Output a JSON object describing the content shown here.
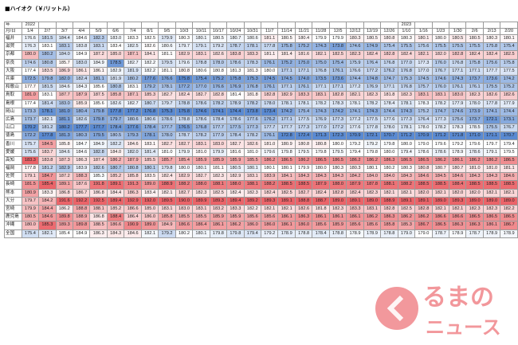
{
  "title": "■ハイオク（￥/リットル）",
  "table": {
    "corner_top": "年",
    "corner_bottom": "月/日",
    "years": [
      "2022",
      null,
      null,
      null,
      null,
      null,
      null,
      null,
      null,
      null,
      null,
      null,
      null,
      null,
      null,
      null,
      null,
      null,
      null,
      null,
      null,
      null,
      "2023",
      null,
      null,
      null,
      null,
      null,
      null
    ],
    "dates": [
      "1/4",
      "2/7",
      "3/7",
      "4/4",
      "5/9",
      "6/6",
      "7/4",
      "8/1",
      "9/5",
      "10/3",
      "10/11",
      "10/17",
      "10/24",
      "10/31",
      "11/7",
      "11/14",
      "11/21",
      "11/28",
      "12/5",
      "12/12",
      "12/19",
      "12/26",
      "1/10",
      "1/16",
      "1/23",
      "1/30",
      "2/6",
      "2/13",
      "2/20"
    ],
    "rows": [
      {
        "label": "福井",
        "values": [
          "176.6",
          "181.5",
          "184.4",
          "184.6",
          "182.3",
          "183.0",
          "183.3",
          "182.5",
          "179.9",
          "180.3",
          "180.1",
          "180.5",
          "180.7",
          "180.6",
          "181.1",
          "180.5",
          "180.4",
          "179.9",
          "179.9",
          "180.3",
          "180.5",
          "180.8",
          "180.3",
          "180.1",
          "180.0",
          "180.5",
          "180.5",
          "180.3",
          "180.1"
        ]
      },
      {
        "label": "滋賀",
        "values": [
          "176.3",
          "183.1",
          "183.1",
          "183.8",
          "183.1",
          "183.4",
          "182.5",
          "182.6",
          "180.6",
          "179.7",
          "179.1",
          "179.2",
          "178.7",
          "178.1",
          "177.8",
          "175.8",
          "175.2",
          "174.3",
          "173.8",
          "174.6",
          "174.9",
          "175.4",
          "175.5",
          "175.6",
          "175.5",
          "175.5",
          "175.5",
          "175.8",
          "175.4"
        ]
      },
      {
        "label": "京都",
        "values": [
          "180.0",
          "180.2",
          "184.0",
          "184.9",
          "187.2",
          "185.0",
          "187.1",
          "184.1",
          "181.1",
          "182.9",
          "183.1",
          "182.6",
          "183.8",
          "183.3",
          "181.1",
          "181.4",
          "181.6",
          "182.1",
          "182.5",
          "182.3",
          "182.4",
          "182.8",
          "182.4",
          "182.1",
          "182.0",
          "182.8",
          "182.4",
          "182.4",
          "182.5"
        ]
      },
      {
        "label": "奈良",
        "values": [
          "174.6",
          "180.8",
          "185.7",
          "183.0",
          "184.9",
          "178.5",
          "182.7",
          "182.2",
          "179.5",
          "179.6",
          "178.8",
          "178.0",
          "178.6",
          "178.3",
          "176.1",
          "175.2",
          "175.0",
          "175.0",
          "175.4",
          "175.9",
          "176.4",
          "176.8",
          "177.0",
          "177.3",
          "176.0",
          "176.8",
          "175.8",
          "175.6",
          "175.8"
        ]
      },
      {
        "label": "大阪",
        "values": [
          "177.4",
          "183.5",
          "186.9",
          "186.1",
          "186.1",
          "182.9",
          "181.9",
          "182.2",
          "181.1",
          "180.8",
          "180.6",
          "180.8",
          "181.3",
          "181.3",
          "180.0",
          "177.1",
          "177.1",
          "176.8",
          "176.1",
          "176.6",
          "177.2",
          "176.2",
          "176.8",
          "177.0",
          "176.7",
          "177.1",
          "177.1",
          "177.7",
          "177.5"
        ]
      },
      {
        "label": "兵庫",
        "values": [
          "172.5",
          "179.8",
          "182.0",
          "182.4",
          "181.1",
          "181.9",
          "180.2",
          "177.6",
          "176.6",
          "175.8",
          "175.4",
          "175.2",
          "175.8",
          "175.3",
          "174.5",
          "174.5",
          "174.0",
          "173.5",
          "173.6",
          "174.4",
          "174.8",
          "174.7",
          "175.3",
          "174.5",
          "174.6",
          "174.3",
          "173.7",
          "173.6",
          "174.2"
        ]
      },
      {
        "label": "和歌山",
        "values": [
          "177.7",
          "181.5",
          "184.6",
          "184.3",
          "185.6",
          "180.8",
          "183.1",
          "179.2",
          "178.1",
          "177.2",
          "177.0",
          "176.6",
          "176.9",
          "176.8",
          "176.1",
          "177.1",
          "176.1",
          "177.1",
          "177.1",
          "177.2",
          "176.9",
          "177.1",
          "176.8",
          "175.7",
          "176.0",
          "176.1",
          "176.1",
          "175.5",
          "175.2"
        ]
      },
      {
        "label": "鳥取",
        "values": [
          "181.0",
          "183.1",
          "187.7",
          "187.9",
          "187.5",
          "185.8",
          "187.1",
          "185.3",
          "182.7",
          "182.4",
          "182.7",
          "182.8",
          "181.4",
          "181.8",
          "182.8",
          "182.9",
          "183.3",
          "183.1",
          "182.8",
          "182.1",
          "182.3",
          "181.8",
          "182.3",
          "183.1",
          "183.1",
          "183.0",
          "182.3",
          "182.6",
          "182.6"
        ]
      },
      {
        "label": "島根",
        "values": [
          "177.4",
          "181.4",
          "183.0",
          "185.9",
          "185.6",
          "182.6",
          "182.7",
          "180.7",
          "179.7",
          "178.8",
          "178.6",
          "178.2",
          "178.9",
          "178.2",
          "178.0",
          "178.1",
          "178.1",
          "178.2",
          "178.3",
          "178.1",
          "178.2",
          "178.4",
          "178.1",
          "178.3",
          "178.2",
          "177.9",
          "178.0",
          "177.8",
          "177.9"
        ]
      },
      {
        "label": "岡山",
        "values": [
          "173.3",
          "178.1",
          "181.0",
          "180.4",
          "179.8",
          "177.8",
          "177.2",
          "176.8",
          "175.3",
          "175.8",
          "174.6",
          "174.1",
          "174.4",
          "173.8",
          "173.4",
          "174.2",
          "175.4",
          "174.3",
          "174.2",
          "174.1",
          "174.3",
          "174.4",
          "174.3",
          "175.2",
          "174.7",
          "174.6",
          "173.9",
          "174.1",
          "174.4"
        ]
      },
      {
        "label": "広島",
        "values": [
          "173.7",
          "182.1",
          "181.1",
          "182.6",
          "179.8",
          "179.7",
          "180.6",
          "180.6",
          "178.6",
          "178.8",
          "178.6",
          "178.4",
          "178.6",
          "177.6",
          "176.2",
          "177.1",
          "177.5",
          "176.9",
          "177.3",
          "177.2",
          "177.5",
          "177.6",
          "177.3",
          "176.4",
          "177.3",
          "175.6",
          "173.7",
          "172.1",
          "173.1"
        ]
      },
      {
        "label": "山口",
        "values": [
          "170.2",
          "181.2",
          "180.2",
          "177.7",
          "177.7",
          "178.4",
          "177.6",
          "178.4",
          "177.7",
          "176.5",
          "176.8",
          "177.7",
          "177.5",
          "177.3",
          "177.7",
          "177.7",
          "177.3",
          "177.0",
          "177.2",
          "177.6",
          "177.8",
          "178.0",
          "178.1",
          "178.0",
          "178.2",
          "178.3",
          "178.5",
          "175.5",
          "176.7"
        ]
      },
      {
        "label": "徳島",
        "values": [
          "172.2",
          "177.8",
          "181.3",
          "180.3",
          "179.5",
          "180.5",
          "179.3",
          "178.1",
          "178.0",
          "178.7",
          "178.2",
          "177.9",
          "178.4",
          "178.2",
          "176.1",
          "172.8",
          "172.4",
          "171.3",
          "172.3",
          "170.9",
          "172.1",
          "170.7",
          "171.2",
          "170.9",
          "171.2",
          "171.8",
          "171.0",
          "171.1",
          "170.7"
        ]
      },
      {
        "label": "香川",
        "values": [
          "175.7",
          "184.5",
          "185.8",
          "184.7",
          "184.9",
          "182.2",
          "184.6",
          "183.1",
          "182.7",
          "182.7",
          "183.1",
          "183.0",
          "182.7",
          "182.6",
          "181.0",
          "180.9",
          "180.8",
          "180.8",
          "180.0",
          "179.2",
          "179.2",
          "179.8",
          "180.0",
          "179.0",
          "179.6",
          "179.2",
          "179.6",
          "179.7",
          "179.4"
        ]
      },
      {
        "label": "愛媛",
        "values": [
          "175.6",
          "183.7",
          "184.6",
          "184.6",
          "182.8",
          "184.0",
          "182.0",
          "181.4",
          "181.0",
          "179.9",
          "181.0",
          "179.9",
          "181.6",
          "181.0",
          "179.6",
          "179.8",
          "179.5",
          "179.8",
          "179.5",
          "179.4",
          "179.8",
          "180.0",
          "179.4",
          "178.6",
          "178.6",
          "178.9",
          "178.6",
          "179.1",
          "179.5"
        ]
      },
      {
        "label": "高知",
        "values": [
          "183.3",
          "183.8",
          "187.3",
          "186.3",
          "187.4",
          "186.2",
          "187.9",
          "185.5",
          "185.7",
          "185.4",
          "185.9",
          "185.9",
          "185.9",
          "185.5",
          "186.2",
          "186.5",
          "186.2",
          "186.5",
          "186.5",
          "186.2",
          "186.2",
          "186.3",
          "186.5",
          "186.5",
          "186.2",
          "186.1",
          "186.2",
          "186.2",
          "186.5"
        ]
      },
      {
        "label": "福岡",
        "values": [
          "177.8",
          "181.2",
          "182.9",
          "183.9",
          "182.6",
          "180.7",
          "180.8",
          "180.1",
          "179.8",
          "180.0",
          "180.1",
          "181.1",
          "180.5",
          "180.1",
          "180.1",
          "180.1",
          "179.9",
          "180.0",
          "180.3",
          "180.3",
          "180.1",
          "180.2",
          "180.3",
          "180.8",
          "180.7",
          "180.7",
          "181.0",
          "181.0",
          "181.1"
        ]
      },
      {
        "label": "佐賀",
        "values": [
          "179.1",
          "184.7",
          "187.2",
          "188.3",
          "185.3",
          "185.2",
          "185.8",
          "183.5",
          "182.4",
          "182.9",
          "182.7",
          "182.3",
          "182.9",
          "183.1",
          "183.9",
          "184.1",
          "184.3",
          "184.3",
          "184.3",
          "184.2",
          "184.0",
          "184.0",
          "184.3",
          "184.6",
          "184.5",
          "184.6",
          "184.3",
          "184.3",
          "184.6"
        ]
      },
      {
        "label": "長崎",
        "values": [
          "181.5",
          "185.4",
          "189.1",
          "187.6",
          "191.8",
          "189.1",
          "191.3",
          "189.0",
          "188.9",
          "188.2",
          "188.0",
          "188.1",
          "188.0",
          "188.1",
          "188.2",
          "188.5",
          "188.5",
          "187.9",
          "188.0",
          "187.9",
          "187.8",
          "188.1",
          "188.2",
          "188.5",
          "188.5",
          "188.4",
          "188.5",
          "188.5",
          "188.5"
        ]
      },
      {
        "label": "熊本",
        "values": [
          "180.9",
          "183.3",
          "186.8",
          "186.7",
          "186.8",
          "184.4",
          "186.3",
          "183.4",
          "182.1",
          "182.7",
          "182.3",
          "182.5",
          "182.4",
          "182.3",
          "182.4",
          "182.5",
          "182.7",
          "182.4",
          "182.8",
          "182.4",
          "182.3",
          "182.1",
          "182.1",
          "182.0",
          "182.1",
          "182.0",
          "182.0",
          "182.1",
          "182.1"
        ]
      },
      {
        "label": "大分",
        "values": [
          "179.7",
          "184.2",
          "191.6",
          "192.2",
          "192.5",
          "189.4",
          "192.9",
          "192.0",
          "189.5",
          "190.0",
          "189.9",
          "189.3",
          "189.4",
          "189.2",
          "189.3",
          "189.1",
          "188.8",
          "188.7",
          "189.0",
          "189.1",
          "189.0",
          "188.9",
          "189.1",
          "189.1",
          "189.0",
          "189.3",
          "189.0",
          "189.0",
          "189.0"
        ]
      },
      {
        "label": "宮崎",
        "values": [
          "179.9",
          "184.4",
          "186.2",
          "188.8",
          "188.1",
          "185.2",
          "186.6",
          "185.0",
          "183.1",
          "183.0",
          "183.1",
          "183.2",
          "183.3",
          "182.2",
          "182.1",
          "182.1",
          "182.6",
          "181.8",
          "182.3",
          "183.3",
          "183.1",
          "182.8",
          "182.5",
          "182.8",
          "182.1",
          "182.1",
          "182.3",
          "182.3",
          "182.2"
        ]
      },
      {
        "label": "鹿児島",
        "values": [
          "180.5",
          "184.6",
          "189.8",
          "188.9",
          "186.8",
          "188.4",
          "186.4",
          "186.0",
          "185.8",
          "185.5",
          "185.5",
          "185.9",
          "185.9",
          "185.6",
          "185.6",
          "186.1",
          "186.3",
          "186.1",
          "186.1",
          "186.1",
          "186.2",
          "186.3",
          "186.2",
          "186.2",
          "186.6",
          "186.6",
          "186.5",
          "186.5",
          "186.5"
        ]
      },
      {
        "label": "沖縄",
        "values": [
          "180.0",
          "185.3",
          "189.3",
          "189.8",
          "188.5",
          "186.6",
          "190.9",
          "189.0",
          "184.9",
          "186.6",
          "186.4",
          "186.1",
          "186.2",
          "186.0",
          "186.0",
          "186.1",
          "186.0",
          "185.6",
          "185.9",
          "185.6",
          "185.6",
          "185.8",
          "185.3",
          "186.7",
          "186.5",
          "186.3",
          "186.3",
          "186.1",
          "186.7"
        ]
      },
      {
        "label": "全国",
        "values": [
          "175.4",
          "182.1",
          "185.4",
          "184.9",
          "186.3",
          "184.3",
          "184.6",
          "182.1",
          "179.2",
          "180.2",
          "180.1",
          "179.8",
          "179.8",
          "179.4",
          "179.2",
          "178.9",
          "178.8",
          "178.4",
          "178.8",
          "178.9",
          "178.9",
          "178.8",
          "179.0",
          "179.0",
          "178.7",
          "178.9",
          "178.7",
          "178.9",
          "178.9"
        ]
      }
    ]
  },
  "logo": {
    "line1": "るまの",
    "line2": "ニュース"
  }
}
